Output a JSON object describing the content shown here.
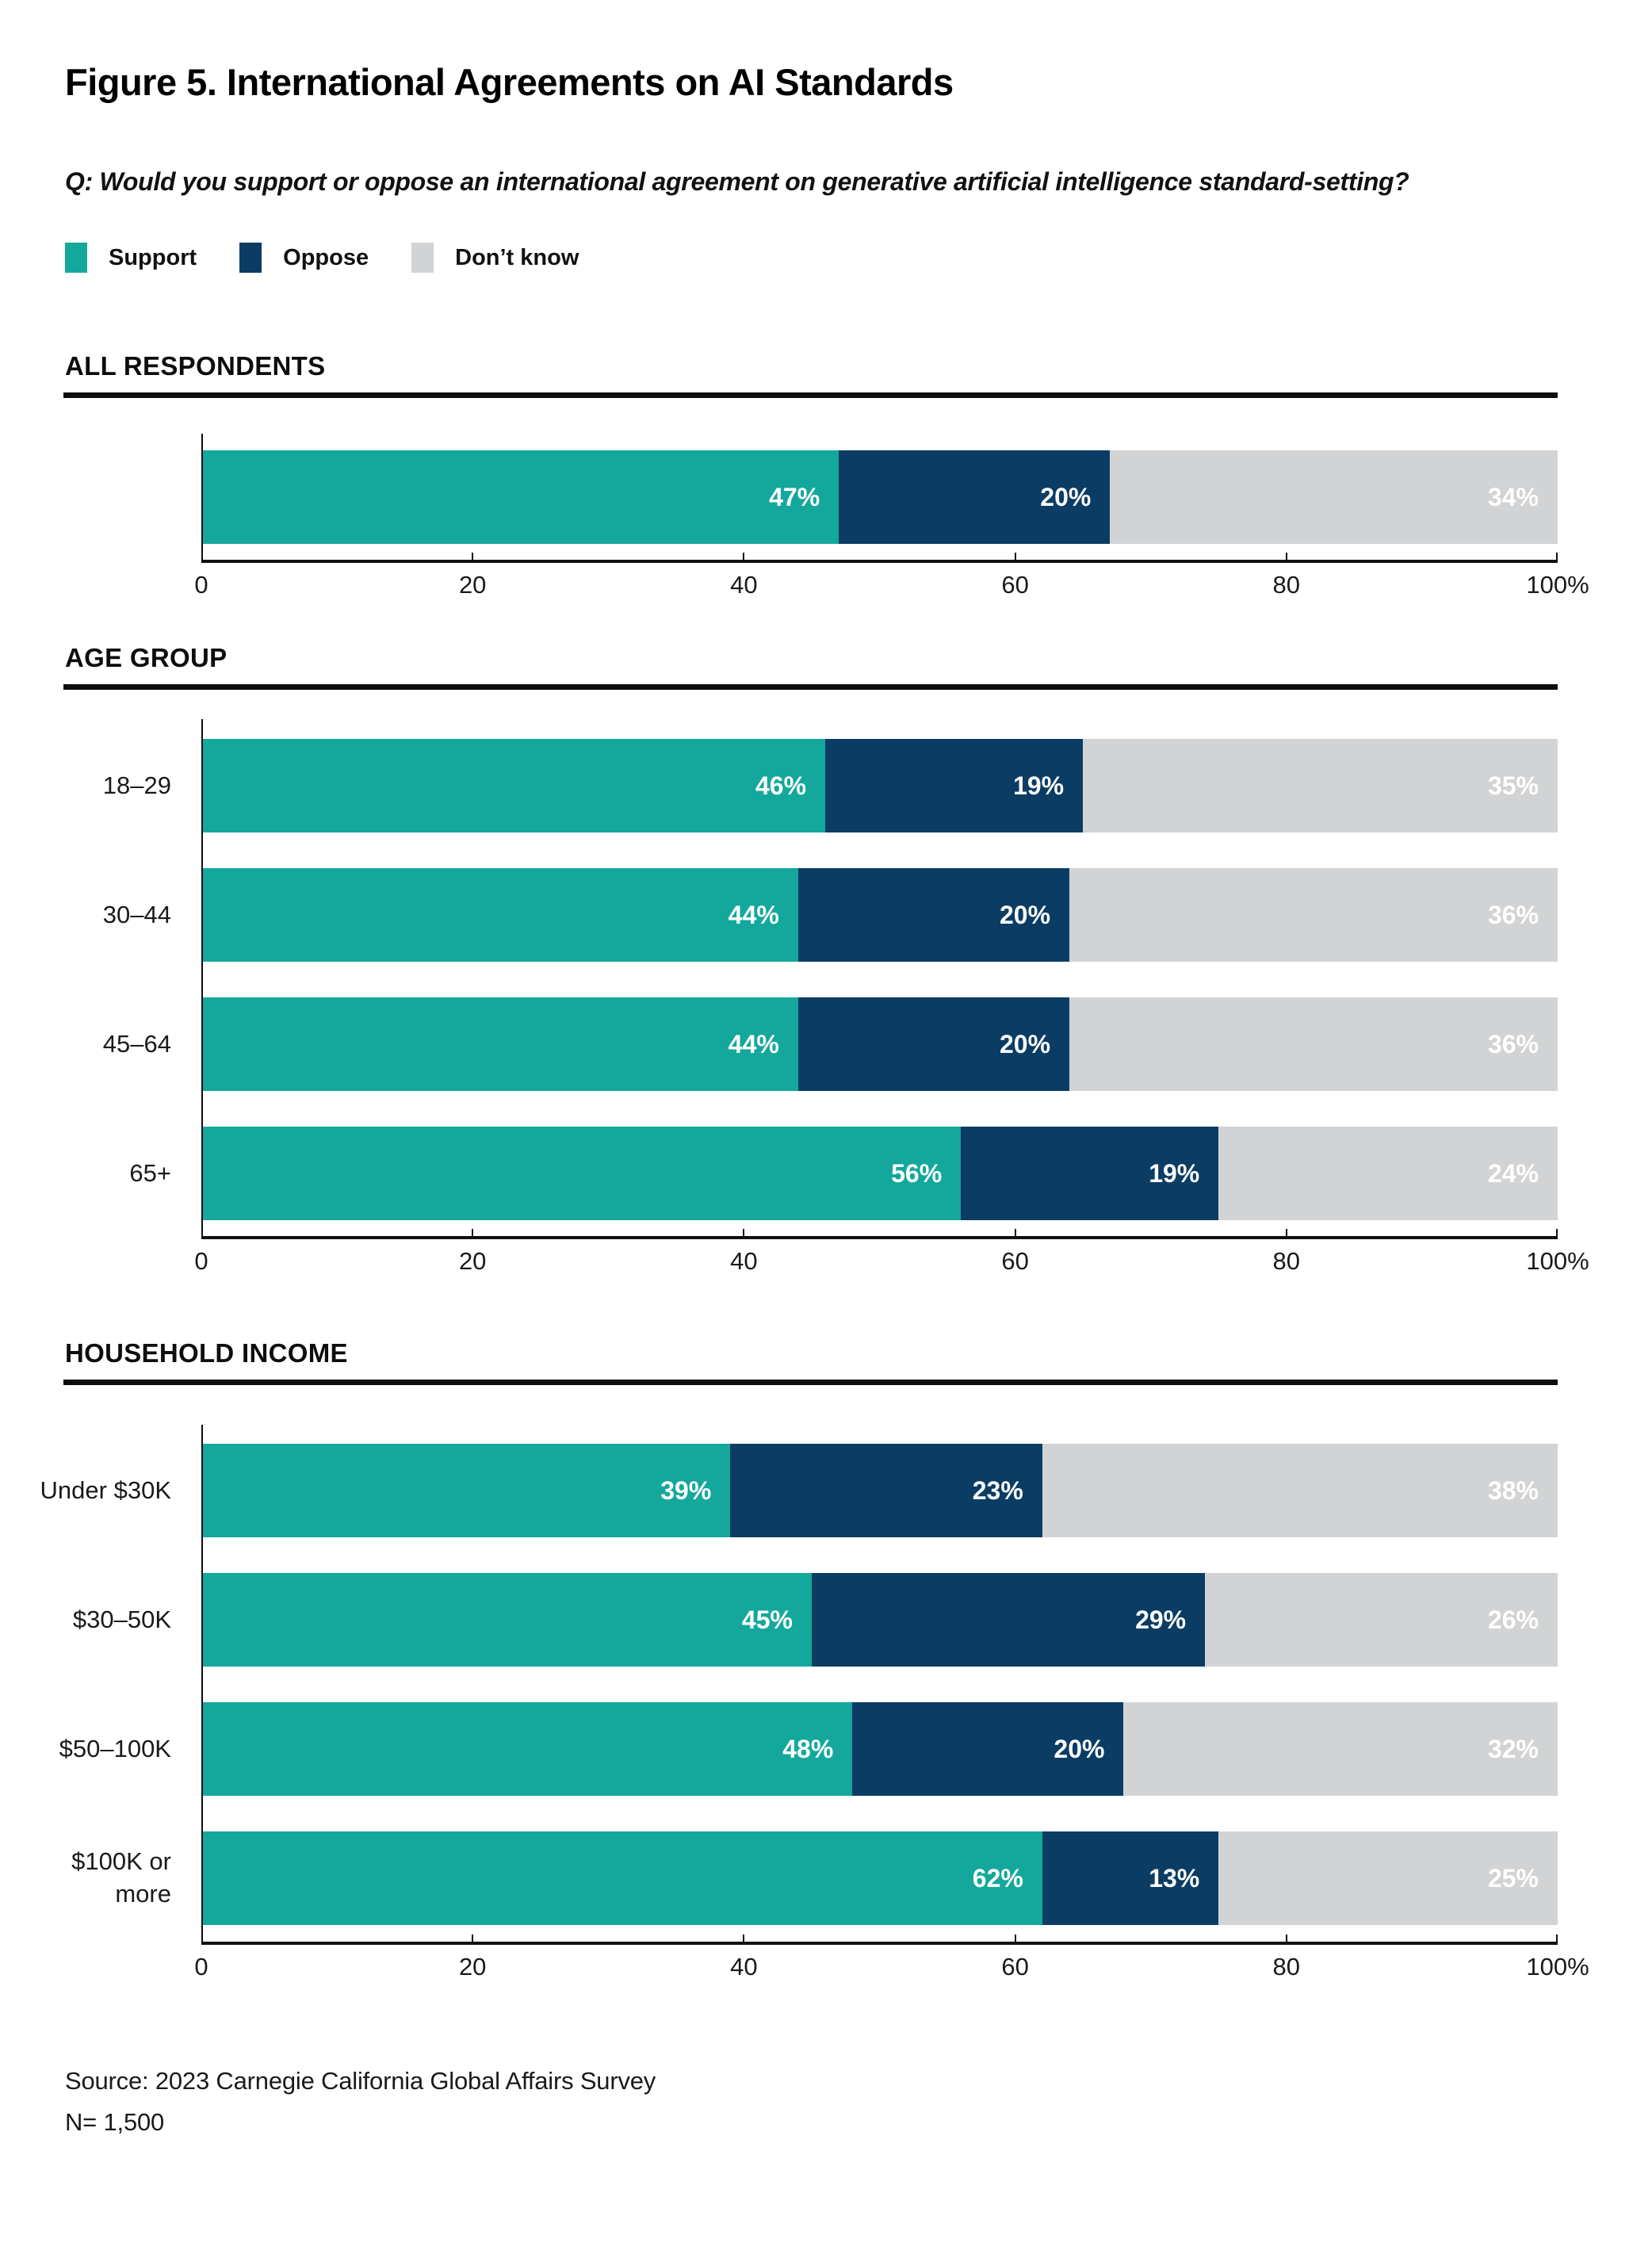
{
  "title": "Figure 5. International Agreements on AI Standards",
  "question": "Q: Would you support or oppose an international agreement on generative artificial intelligence standard-setting?",
  "legend": {
    "items": [
      {
        "label": "Support",
        "color": "#14A89C"
      },
      {
        "label": "Oppose",
        "color": "#0A3C64"
      },
      {
        "label": "Don’t know",
        "color": "#D2D3D4"
      }
    ]
  },
  "axis": {
    "min": 0,
    "max": 100,
    "tick_labels": [
      "0",
      "20",
      "40",
      "60",
      "80",
      "100%"
    ]
  },
  "footer": {
    "source": "Source: 2023 Carnegie California Global Affairs Survey",
    "n": "N= 1,500"
  },
  "chart_data": [
    {
      "type": "bar",
      "orientation": "horizontal",
      "stacked": true,
      "section": "ALL RESPONDENTS",
      "categories": [
        ""
      ],
      "series": [
        {
          "name": "Support",
          "values": [
            47
          ]
        },
        {
          "name": "Oppose",
          "values": [
            20
          ]
        },
        {
          "name": "Don't know",
          "values": [
            34
          ]
        }
      ],
      "xlim": [
        0,
        100
      ],
      "legend_position": "top",
      "grid": false
    },
    {
      "type": "bar",
      "orientation": "horizontal",
      "stacked": true,
      "section": "AGE GROUP",
      "categories": [
        "18–29",
        "30–44",
        "45–64",
        "65+"
      ],
      "series": [
        {
          "name": "Support",
          "values": [
            46,
            44,
            44,
            56
          ]
        },
        {
          "name": "Oppose",
          "values": [
            19,
            20,
            20,
            19
          ]
        },
        {
          "name": "Don't know",
          "values": [
            35,
            36,
            36,
            24
          ]
        }
      ],
      "xlim": [
        0,
        100
      ],
      "grid": false
    },
    {
      "type": "bar",
      "orientation": "horizontal",
      "stacked": true,
      "section": "HOUSEHOLD INCOME",
      "categories": [
        "Under $30K",
        "$30–50K",
        "$50–100K",
        "$100K or more"
      ],
      "series": [
        {
          "name": "Support",
          "values": [
            39,
            45,
            48,
            62
          ]
        },
        {
          "name": "Oppose",
          "values": [
            23,
            29,
            20,
            13
          ]
        },
        {
          "name": "Don't know",
          "values": [
            38,
            26,
            32,
            25
          ]
        }
      ],
      "xlim": [
        0,
        100
      ],
      "grid": false
    }
  ]
}
